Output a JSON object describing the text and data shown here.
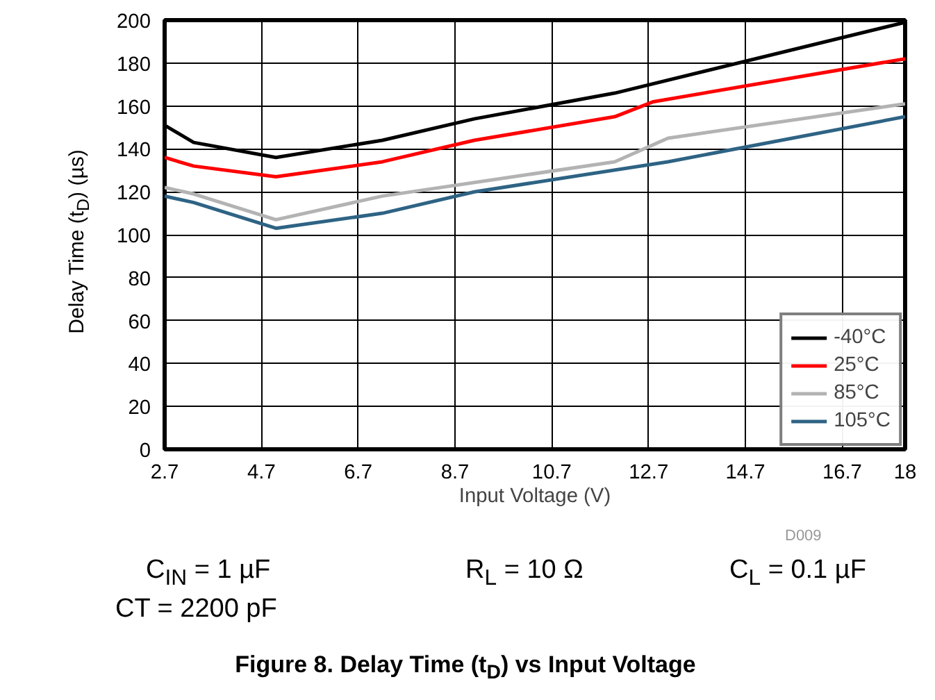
{
  "chart_data": {
    "type": "line",
    "title": "Figure 8. Delay Time (t$_{D}$) vs Input Voltage",
    "xlabel": "Input Voltage (V)",
    "ylabel": "Delay Time (t$_{D}$) (µs)",
    "annotations": [
      "D009",
      "C$_{IN}$ = 1 µF",
      "R$_{L}$ = 10 Ω",
      "C$_{L}$ = 0.1 µF",
      "CT = 2200 pF"
    ],
    "xlim": [
      2.7,
      18
    ],
    "xticks": [
      2.7,
      4.7,
      6.7,
      8.7,
      10.7,
      12.7,
      14.7,
      16.7,
      18
    ],
    "ylim": [
      0,
      200
    ],
    "yticks": [
      0,
      20,
      40,
      60,
      80,
      100,
      120,
      140,
      160,
      180,
      200
    ],
    "grid": true,
    "legend": "bottom right",
    "line_style": "solid",
    "series": [
      {
        "name": "-40°C",
        "color": "#000000",
        "x": [
          2.7,
          3.3,
          5.0,
          7.2,
          9.1,
          12.0,
          18.0
        ],
        "values": [
          151,
          143,
          136,
          144,
          154,
          166,
          199
        ]
      },
      {
        "name": "25°C",
        "color": "#ff0000",
        "x": [
          2.7,
          3.3,
          5.0,
          7.2,
          9.1,
          12.0,
          12.8,
          18.0
        ],
        "values": [
          136,
          132,
          127,
          134,
          144,
          155,
          162,
          182
        ]
      },
      {
        "name": "85°C",
        "color": "#b3b3b3",
        "x": [
          2.7,
          3.3,
          5.0,
          7.2,
          12.0,
          13.1,
          18.0
        ],
        "values": [
          122,
          119,
          107,
          118,
          134,
          145,
          161
        ]
      },
      {
        "name": "105°C",
        "color": "#2e6384",
        "x": [
          2.7,
          3.3,
          5.0,
          7.2,
          9.1,
          13.1,
          18.0
        ],
        "values": [
          118,
          115,
          103,
          110,
          120,
          134,
          155
        ]
      }
    ]
  }
}
